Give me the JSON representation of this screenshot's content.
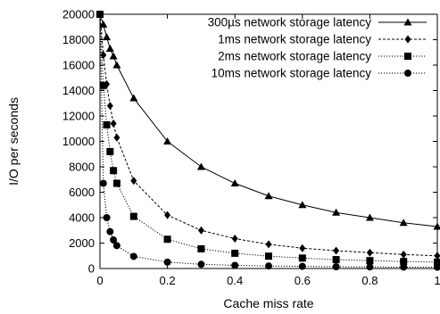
{
  "chart_data": {
    "type": "line",
    "title": "",
    "xlabel": "Cache miss rate",
    "ylabel": "I/O per seconds",
    "xlim": [
      0,
      1
    ],
    "ylim": [
      0,
      20000
    ],
    "x_ticks": [
      "0",
      "0.2",
      "0.4",
      "0.6",
      "0.8",
      "1"
    ],
    "y_ticks": [
      "0",
      "2000",
      "4000",
      "6000",
      "8000",
      "10000",
      "12000",
      "14000",
      "16000",
      "18000",
      "20000"
    ],
    "grid": false,
    "legend_position": "top-right",
    "series": [
      {
        "name": "300µs network storage latency",
        "marker": "triangle",
        "line_style": "solid",
        "x": [
          0,
          0.01,
          0.02,
          0.03,
          0.04,
          0.05,
          0.1,
          0.2,
          0.3,
          0.4,
          0.5,
          0.6,
          0.7,
          0.8,
          0.9,
          1
        ],
        "y": [
          20000,
          19200,
          18200,
          17300,
          16700,
          16000,
          13400,
          10000,
          8000,
          6700,
          5700,
          5000,
          4400,
          4000,
          3600,
          3300
        ]
      },
      {
        "name": "1ms network storage latency",
        "marker": "diamond",
        "line_style": "dashed",
        "x": [
          0,
          0.01,
          0.02,
          0.03,
          0.04,
          0.05,
          0.1,
          0.2,
          0.3,
          0.4,
          0.5,
          0.6,
          0.7,
          0.8,
          0.9,
          1
        ],
        "y": [
          20000,
          16800,
          14500,
          12800,
          11400,
          10300,
          6900,
          4200,
          3000,
          2350,
          1900,
          1600,
          1400,
          1250,
          1100,
          1000
        ]
      },
      {
        "name": "2ms network storage latency",
        "marker": "square",
        "line_style": "dotted",
        "x": [
          0,
          0.01,
          0.02,
          0.03,
          0.04,
          0.05,
          0.1,
          0.2,
          0.3,
          0.4,
          0.5,
          0.6,
          0.7,
          0.8,
          0.9,
          1
        ],
        "y": [
          20000,
          14400,
          11300,
          9200,
          7700,
          6700,
          4100,
          2300,
          1550,
          1200,
          970,
          820,
          700,
          620,
          550,
          500
        ]
      },
      {
        "name": "10ms network storage latency",
        "marker": "circle",
        "line_style": "dotted",
        "x": [
          0,
          0.01,
          0.02,
          0.03,
          0.04,
          0.05,
          0.1,
          0.2,
          0.3,
          0.4,
          0.5,
          0.6,
          0.7,
          0.8,
          0.9,
          1
        ],
        "y": [
          20000,
          6700,
          4000,
          2900,
          2250,
          1800,
          950,
          500,
          330,
          250,
          200,
          170,
          140,
          125,
          110,
          100
        ]
      }
    ]
  }
}
